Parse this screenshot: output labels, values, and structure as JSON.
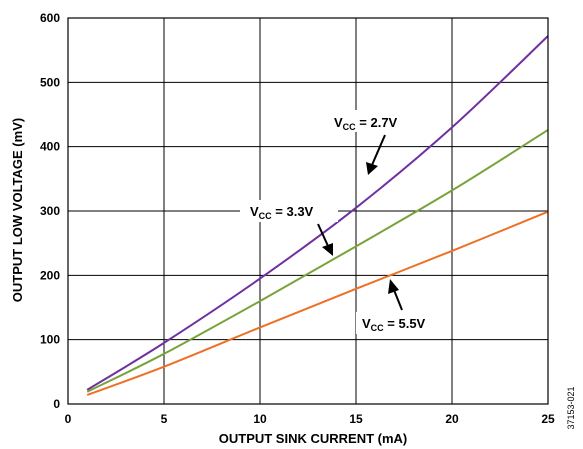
{
  "chart_data": {
    "type": "line",
    "xlabel": "OUTPUT SINK CURRENT (mA)",
    "ylabel": "OUTPUT LOW VOLTAGE (mV)",
    "xlim": [
      0,
      25
    ],
    "ylim": [
      0,
      600
    ],
    "x_ticks": [
      "0",
      "5",
      "10",
      "15",
      "20",
      "25"
    ],
    "y_ticks": [
      "0",
      "100",
      "200",
      "300",
      "400",
      "500",
      "600"
    ],
    "grid": true,
    "series": [
      {
        "name": "V_CC = 2.7V",
        "label_main": "V",
        "label_sub": "CC",
        "label_tail": " = 2.7V",
        "color": "#7030a0",
        "x": [
          1,
          5,
          10,
          15,
          20,
          25
        ],
        "y": [
          22,
          95,
          195,
          305,
          430,
          572
        ]
      },
      {
        "name": "V_CC = 3.3V",
        "label_main": "V",
        "label_sub": "CC",
        "label_tail": " = 3.3V",
        "color": "#77a33a",
        "x": [
          1,
          5,
          10,
          15,
          20,
          25
        ],
        "y": [
          19,
          78,
          160,
          245,
          332,
          426
        ]
      },
      {
        "name": "V_CC = 5.5V",
        "label_main": "V",
        "label_sub": "CC",
        "label_tail": " = 5.5V",
        "color": "#ed7026",
        "x": [
          1,
          5,
          10,
          15,
          20,
          25
        ],
        "y": [
          14,
          58,
          119,
          179,
          238,
          299
        ]
      }
    ]
  },
  "figure_code": "37153-021"
}
